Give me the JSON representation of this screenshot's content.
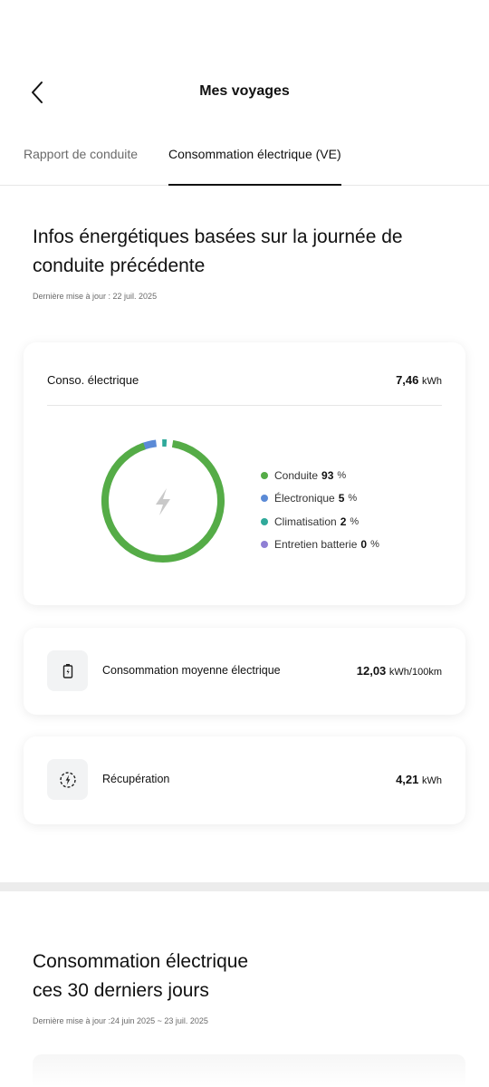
{
  "header": {
    "title": "Mes voyages"
  },
  "tabs": [
    {
      "label": "Rapport de conduite"
    },
    {
      "label": "Consommation électrique (VE)"
    }
  ],
  "section1": {
    "title": "Infos énergétiques basées sur la journée de conduite précédente",
    "updated": "Dernière mise à jour : 22 juil. 2025"
  },
  "conso_card": {
    "label": "Conso. électrique",
    "value": "7,46",
    "unit": "kWh",
    "legend": [
      {
        "name": "Conduite",
        "pct": "93",
        "symbol": "%",
        "color": "#55ac47"
      },
      {
        "name": "Électronique",
        "pct": "5",
        "symbol": "%",
        "color": "#5b8ad6"
      },
      {
        "name": "Climatisation",
        "pct": "2",
        "symbol": "%",
        "color": "#2fa99a"
      },
      {
        "name": "Entretien batterie",
        "pct": "0",
        "symbol": "%",
        "color": "#8f7fd4"
      }
    ]
  },
  "avg_card": {
    "label": "Consommation moyenne électrique",
    "value": "12,03",
    "unit": "kWh/100km",
    "icon": "battery-charge-icon"
  },
  "recup_card": {
    "label": "Récupération",
    "value": "4,21",
    "unit": "kWh",
    "icon": "regeneration-icon"
  },
  "section2": {
    "title_line1": "Consommation électrique",
    "title_line2": "ces 30 derniers jours",
    "updated": "Dernière mise à jour :24 juin 2025 ~ 23 juil. 2025"
  }
}
